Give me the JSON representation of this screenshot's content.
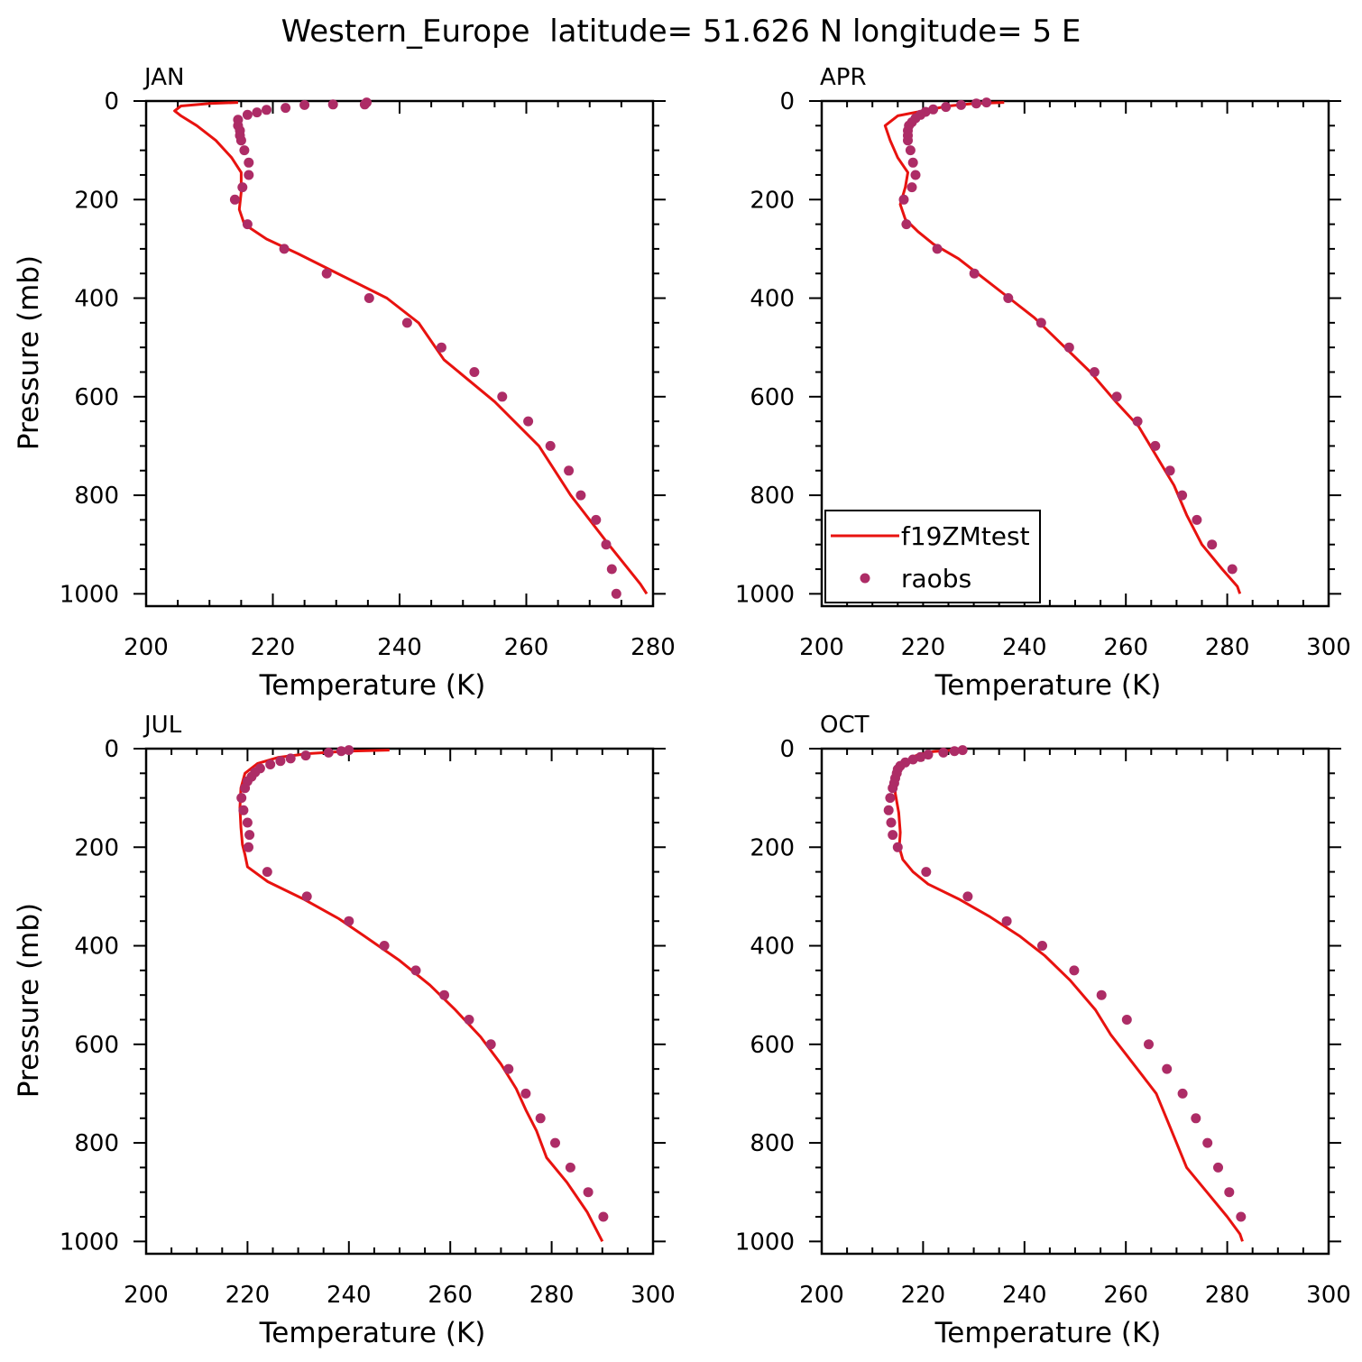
{
  "title": "Western_Europe  latitude= 51.626 N longitude= 5 E",
  "colors": {
    "model": "#e8120f",
    "obs": "#ad2c66",
    "axis": "#000000"
  },
  "legend": {
    "model_label": "f19ZMtest",
    "obs_label": "raobs",
    "panel": 1
  },
  "chart_data": [
    {
      "type": "line",
      "month": "JAN",
      "xlabel": "Temperature (K)",
      "ylabel": "Pressure (mb)",
      "xlim": [
        200,
        280
      ],
      "ylim": [
        0,
        1025
      ],
      "xticks": [
        200,
        220,
        240,
        260,
        280
      ],
      "yticks": [
        0,
        200,
        400,
        600,
        800,
        1000
      ],
      "series": [
        {
          "name": "f19ZMtest",
          "style": "line",
          "points": [
            [
              214.5,
              3
            ],
            [
              210,
              5
            ],
            [
              205.5,
              10
            ],
            [
              204.5,
              20
            ],
            [
              205.5,
              30
            ],
            [
              208,
              50
            ],
            [
              211,
              80
            ],
            [
              213.5,
              115
            ],
            [
              215,
              145
            ],
            [
              215,
              185
            ],
            [
              214.7,
              220
            ],
            [
              215.5,
              250
            ],
            [
              219,
              280
            ],
            [
              224,
              310
            ],
            [
              231,
              355
            ],
            [
              238,
              400
            ],
            [
              243,
              450
            ],
            [
              247,
              525
            ],
            [
              255,
              610
            ],
            [
              262,
              700
            ],
            [
              267,
              800
            ],
            [
              273,
              900
            ],
            [
              278,
              980
            ],
            [
              279,
              1000
            ]
          ]
        },
        {
          "name": "raobs",
          "style": "markers",
          "points": [
            [
              234.8,
              3
            ],
            [
              234.5,
              7
            ],
            [
              229.5,
              7
            ],
            [
              225,
              8
            ],
            [
              222,
              14
            ],
            [
              219,
              18
            ],
            [
              217.5,
              23
            ],
            [
              216,
              28
            ],
            [
              214.5,
              38
            ],
            [
              214.5,
              50
            ],
            [
              214.8,
              60
            ],
            [
              214.8,
              70
            ],
            [
              215,
              80
            ],
            [
              215.5,
              100
            ],
            [
              216.2,
              125
            ],
            [
              216.2,
              150
            ],
            [
              215.2,
              175
            ],
            [
              214,
              200
            ],
            [
              216,
              250
            ],
            [
              221.8,
              300
            ],
            [
              228.5,
              350
            ],
            [
              235.2,
              400
            ],
            [
              241.2,
              450
            ],
            [
              246.6,
              500
            ],
            [
              251.8,
              550
            ],
            [
              256.2,
              600
            ],
            [
              260.3,
              650
            ],
            [
              263.8,
              700
            ],
            [
              266.7,
              750
            ],
            [
              268.6,
              800
            ],
            [
              271,
              850
            ],
            [
              272.6,
              900
            ],
            [
              273.5,
              950
            ],
            [
              274.2,
              1000
            ]
          ]
        }
      ]
    },
    {
      "type": "line",
      "month": "APR",
      "xlabel": "Temperature (K)",
      "ylabel": "",
      "xlim": [
        200,
        300
      ],
      "ylim": [
        0,
        1025
      ],
      "xticks": [
        200,
        220,
        240,
        260,
        280,
        300
      ],
      "yticks": [
        0,
        200,
        400,
        600,
        800,
        1000
      ],
      "series": [
        {
          "name": "f19ZMtest",
          "style": "line",
          "points": [
            [
              236,
              3
            ],
            [
              230,
              5
            ],
            [
              225,
              10
            ],
            [
              220,
              20
            ],
            [
              215,
              30
            ],
            [
              212.5,
              50
            ],
            [
              213.5,
              80
            ],
            [
              215,
              115
            ],
            [
              217,
              145
            ],
            [
              216.5,
              175
            ],
            [
              215.5,
              210
            ],
            [
              216.5,
              240
            ],
            [
              219,
              265
            ],
            [
              222,
              290
            ],
            [
              227,
              320
            ],
            [
              232,
              360
            ],
            [
              237,
              400
            ],
            [
              242,
              440
            ],
            [
              247,
              490
            ],
            [
              253,
              550
            ],
            [
              258,
              610
            ],
            [
              262.5,
              660
            ],
            [
              266,
              720
            ],
            [
              269.5,
              780
            ],
            [
              272,
              840
            ],
            [
              275,
              900
            ],
            [
              279,
              950
            ],
            [
              282,
              985
            ],
            [
              282.5,
              1000
            ]
          ]
        },
        {
          "name": "raobs",
          "style": "markers",
          "points": [
            [
              232.5,
              3
            ],
            [
              230.5,
              5
            ],
            [
              227.5,
              8
            ],
            [
              224.5,
              12
            ],
            [
              222,
              17
            ],
            [
              220.5,
              22
            ],
            [
              219.5,
              28
            ],
            [
              218.5,
              35
            ],
            [
              217.8,
              43
            ],
            [
              217.2,
              50
            ],
            [
              217,
              60
            ],
            [
              217,
              70
            ],
            [
              217,
              80
            ],
            [
              217.5,
              100
            ],
            [
              218,
              125
            ],
            [
              218.5,
              150
            ],
            [
              217.8,
              175
            ],
            [
              216.2,
              200
            ],
            [
              216.7,
              250
            ],
            [
              222.8,
              300
            ],
            [
              230.1,
              350
            ],
            [
              236.8,
              400
            ],
            [
              243.3,
              450
            ],
            [
              248.8,
              500
            ],
            [
              253.8,
              550
            ],
            [
              258.2,
              600
            ],
            [
              262.3,
              650
            ],
            [
              265.8,
              700
            ],
            [
              268.7,
              750
            ],
            [
              271.1,
              800
            ],
            [
              274,
              850
            ],
            [
              277,
              900
            ],
            [
              281,
              950
            ]
          ]
        }
      ]
    },
    {
      "type": "line",
      "month": "JUL",
      "xlabel": "Temperature (K)",
      "ylabel": "Pressure (mb)",
      "xlim": [
        200,
        300
      ],
      "ylim": [
        0,
        1025
      ],
      "xticks": [
        200,
        220,
        240,
        260,
        280,
        300
      ],
      "yticks": [
        0,
        200,
        400,
        600,
        800,
        1000
      ],
      "series": [
        {
          "name": "f19ZMtest",
          "style": "line",
          "points": [
            [
              248,
              3
            ],
            [
              240,
              5
            ],
            [
              232,
              10
            ],
            [
              226,
              18
            ],
            [
              222,
              30
            ],
            [
              219.5,
              50
            ],
            [
              218.7,
              80
            ],
            [
              218.5,
              120
            ],
            [
              218.7,
              160
            ],
            [
              219,
              195
            ],
            [
              219.5,
              215
            ],
            [
              220,
              240
            ],
            [
              224,
              270
            ],
            [
              231,
              305
            ],
            [
              238,
              345
            ],
            [
              243,
              380
            ],
            [
              250,
              430
            ],
            [
              256,
              480
            ],
            [
              261,
              530
            ],
            [
              266,
              585
            ],
            [
              270,
              640
            ],
            [
              273,
              690
            ],
            [
              275,
              735
            ],
            [
              277,
              775
            ],
            [
              279,
              830
            ],
            [
              283,
              880
            ],
            [
              287,
              940
            ],
            [
              289,
              980
            ],
            [
              290,
              1000
            ]
          ]
        },
        {
          "name": "raobs",
          "style": "markers",
          "points": [
            [
              240,
              3
            ],
            [
              238.5,
              5
            ],
            [
              236,
              8
            ],
            [
              231.5,
              14
            ],
            [
              228.5,
              20
            ],
            [
              226.5,
              25
            ],
            [
              224.5,
              32
            ],
            [
              222.5,
              40
            ],
            [
              221.5,
              48
            ],
            [
              220.8,
              57
            ],
            [
              220,
              66
            ],
            [
              219.5,
              80
            ],
            [
              218.8,
              100
            ],
            [
              219.2,
              125
            ],
            [
              220,
              150
            ],
            [
              220.4,
              175
            ],
            [
              220.2,
              200
            ],
            [
              223.9,
              250
            ],
            [
              231.7,
              300
            ],
            [
              240,
              350
            ],
            [
              247,
              400
            ],
            [
              253.2,
              450
            ],
            [
              258.8,
              500
            ],
            [
              263.7,
              550
            ],
            [
              268,
              600
            ],
            [
              271.5,
              650
            ],
            [
              274.9,
              700
            ],
            [
              277.8,
              750
            ],
            [
              280.7,
              800
            ],
            [
              283.7,
              850
            ],
            [
              287.2,
              900
            ],
            [
              290.2,
              950
            ]
          ]
        }
      ]
    },
    {
      "type": "line",
      "month": "OCT",
      "xlabel": "Temperature (K)",
      "ylabel": "",
      "xlim": [
        200,
        300
      ],
      "ylim": [
        0,
        1025
      ],
      "xticks": [
        200,
        220,
        240,
        260,
        280,
        300
      ],
      "yticks": [
        0,
        200,
        400,
        600,
        800,
        1000
      ],
      "series": [
        {
          "name": "f19ZMtest",
          "style": "line",
          "points": [
            [
              226,
              3
            ],
            [
              222,
              6
            ],
            [
              219,
              12
            ],
            [
              216.5,
              25
            ],
            [
              215,
              40
            ],
            [
              214.5,
              60
            ],
            [
              214.5,
              90
            ],
            [
              215.2,
              130
            ],
            [
              215.5,
              170
            ],
            [
              215.3,
              200
            ],
            [
              216,
              225
            ],
            [
              218,
              250
            ],
            [
              221,
              275
            ],
            [
              227,
              305
            ],
            [
              233,
              340
            ],
            [
              239,
              380
            ],
            [
              244,
              420
            ],
            [
              249,
              470
            ],
            [
              254,
              530
            ],
            [
              257,
              580
            ],
            [
              260,
              620
            ],
            [
              263,
              660
            ],
            [
              266,
              700
            ],
            [
              268,
              750
            ],
            [
              270,
              800
            ],
            [
              272,
              850
            ],
            [
              276,
              900
            ],
            [
              280,
              950
            ],
            [
              282.5,
              985
            ],
            [
              283,
              1000
            ]
          ]
        },
        {
          "name": "raobs",
          "style": "markers",
          "points": [
            [
              227.8,
              3
            ],
            [
              226.2,
              5
            ],
            [
              224,
              8
            ],
            [
              221,
              12
            ],
            [
              219.5,
              17
            ],
            [
              218,
              22
            ],
            [
              216.5,
              28
            ],
            [
              215.5,
              35
            ],
            [
              215,
              42
            ],
            [
              214.8,
              50
            ],
            [
              214.5,
              60
            ],
            [
              214.3,
              70
            ],
            [
              214,
              80
            ],
            [
              213.5,
              100
            ],
            [
              213.2,
              125
            ],
            [
              213.7,
              150
            ],
            [
              214,
              175
            ],
            [
              215,
              200
            ],
            [
              220.6,
              250
            ],
            [
              228.8,
              300
            ],
            [
              236.5,
              350
            ],
            [
              243.5,
              400
            ],
            [
              249.8,
              450
            ],
            [
              255.2,
              500
            ],
            [
              260.2,
              550
            ],
            [
              264.5,
              600
            ],
            [
              268.1,
              650
            ],
            [
              271.2,
              700
            ],
            [
              273.8,
              750
            ],
            [
              276.1,
              800
            ],
            [
              278.2,
              850
            ],
            [
              280.4,
              900
            ],
            [
              282.7,
              950
            ]
          ]
        }
      ]
    }
  ]
}
